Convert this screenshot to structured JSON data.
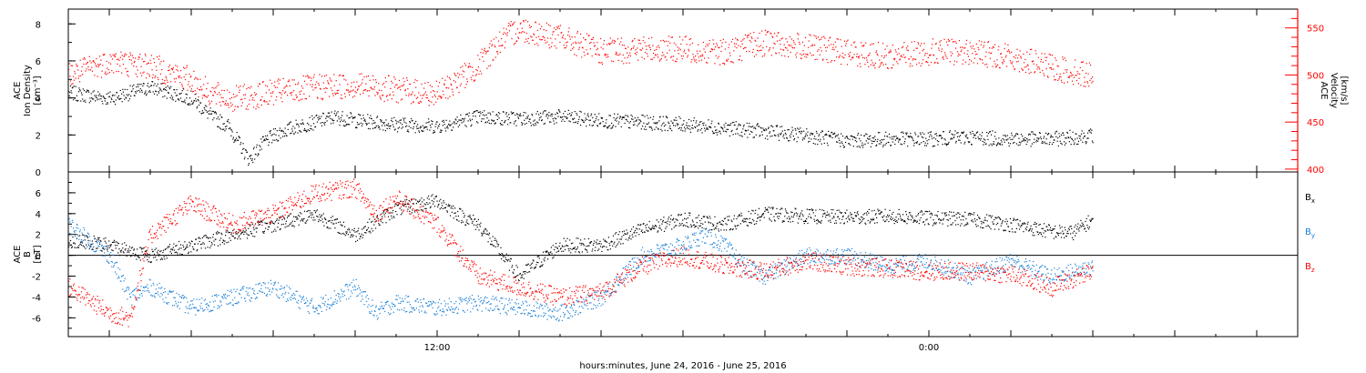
{
  "x_axis_title": "hours:minutes, June 24, 2016 - June 25, 2016",
  "chart_data": [
    {
      "type": "scatter",
      "panel": "top",
      "ylabel_left": [
        "ACE",
        "Ion Density",
        "[cm⁻³]"
      ],
      "ylabel_right": [
        "ACE",
        "Velocity",
        "[km/s]"
      ],
      "xlim": [
        3,
        33
      ],
      "ylim": [
        0,
        8.8
      ],
      "ylim_right": [
        397,
        570
      ],
      "left_ticks": [
        0,
        2,
        4,
        6,
        8
      ],
      "right_ticks": [
        400,
        450,
        500,
        550
      ],
      "x_tick_labels": [
        {
          "x": 12,
          "label": "12:00"
        },
        {
          "x": 24,
          "label": "0:00"
        }
      ],
      "colors": {
        "density": "#000000",
        "velocity": "#ff0000"
      },
      "series": [
        {
          "key": "density",
          "axis": "left",
          "scatter": 0.4,
          "x": [
            3.0,
            4.0,
            5.0,
            5.5,
            6.0,
            6.5,
            6.9,
            7.4,
            7.8,
            8.2,
            8.6,
            9.0,
            9.5,
            10.0,
            11.0,
            12.0,
            13.0,
            14.0,
            15.0,
            16.0,
            17.0,
            18.0,
            19.0,
            20.0,
            21.0,
            22.0,
            23.0,
            24.0,
            25.0,
            26.0,
            27.0,
            28.0
          ],
          "y": [
            4.3,
            4.0,
            4.6,
            4.3,
            4.0,
            3.0,
            2.5,
            0.7,
            1.7,
            2.2,
            2.5,
            2.7,
            3.0,
            2.8,
            2.6,
            2.5,
            3.0,
            2.9,
            3.0,
            2.8,
            2.7,
            2.6,
            2.4,
            2.2,
            2.0,
            1.7,
            1.8,
            1.8,
            1.9,
            1.8,
            1.8,
            2.0
          ]
        },
        {
          "key": "velocity",
          "axis": "right",
          "scatter": 14,
          "x": [
            3.0,
            4.0,
            5.0,
            6.0,
            6.5,
            7.0,
            7.5,
            8.0,
            9.0,
            10.0,
            11.0,
            12.0,
            13.0,
            13.5,
            14.0,
            15.0,
            16.0,
            17.0,
            18.0,
            19.0,
            20.0,
            21.0,
            22.0,
            23.0,
            24.0,
            25.0,
            26.0,
            27.0,
            28.0
          ],
          "y": [
            500,
            515,
            510,
            495,
            480,
            475,
            478,
            482,
            487,
            490,
            485,
            480,
            510,
            535,
            550,
            540,
            525,
            528,
            528,
            525,
            535,
            530,
            525,
            520,
            525,
            525,
            520,
            508,
            500
          ]
        }
      ]
    },
    {
      "type": "scatter",
      "panel": "bottom",
      "ylabel_left": [
        "ACE",
        "B",
        "[nT]"
      ],
      "legend": [
        {
          "text": "B",
          "sub": "x"
        },
        {
          "text": "B",
          "sub": "y"
        },
        {
          "text": "B",
          "sub": "z"
        }
      ],
      "xlim": [
        3,
        33
      ],
      "ylim": [
        -7.8,
        8.0
      ],
      "left_ticks": [
        -6,
        -4,
        -2,
        0,
        2,
        4,
        6
      ],
      "x_tick_labels": [
        {
          "x": 12,
          "label": "12:00"
        },
        {
          "x": 24,
          "label": "0:00"
        }
      ],
      "colors": {
        "bx": "#000000",
        "by": "#1c7fd6",
        "bz": "#ff0000"
      },
      "series": [
        {
          "key": "bx",
          "scatter": 0.7,
          "x": [
            3.0,
            4.0,
            5.0,
            6.0,
            7.0,
            8.0,
            9.0,
            10.0,
            11.0,
            12.0,
            12.5,
            13.0,
            14.0,
            15.0,
            16.0,
            17.0,
            18.0,
            19.0,
            20.0,
            21.0,
            22.0,
            23.0,
            24.0,
            25.0,
            26.0,
            27.0,
            27.5,
            28.0
          ],
          "y": [
            1.5,
            1.0,
            0.0,
            1.0,
            2.0,
            3.0,
            4.0,
            2.0,
            4.5,
            5.3,
            4.0,
            3.0,
            -2.0,
            1.0,
            1.0,
            2.5,
            3.5,
            3.0,
            4.0,
            3.8,
            3.7,
            3.8,
            3.6,
            3.5,
            3.0,
            2.3,
            2.2,
            3.5
          ]
        },
        {
          "key": "by",
          "scatter": 0.8,
          "x": [
            3.0,
            4.0,
            4.5,
            5.0,
            6.0,
            7.0,
            8.0,
            9.0,
            10.0,
            10.5,
            11.0,
            12.0,
            13.0,
            14.0,
            15.0,
            16.0,
            17.0,
            18.0,
            18.5,
            19.0,
            19.5,
            20.0,
            21.0,
            22.0,
            23.0,
            24.0,
            25.0,
            26.0,
            27.0,
            28.0
          ],
          "y": [
            3.0,
            0.0,
            -4.0,
            -3.0,
            -5.0,
            -4.0,
            -3.0,
            -5.0,
            -3.0,
            -5.5,
            -4.5,
            -5.0,
            -4.5,
            -5.0,
            -5.5,
            -4.0,
            0.0,
            1.0,
            2.0,
            1.0,
            -1.0,
            -2.0,
            0.0,
            0.0,
            -1.0,
            -0.5,
            -2.0,
            -0.5,
            -2.0,
            -1.0
          ]
        },
        {
          "key": "bz",
          "scatter": 0.9,
          "x": [
            3.0,
            4.0,
            4.5,
            5.0,
            6.0,
            7.0,
            8.0,
            9.0,
            10.0,
            10.5,
            11.0,
            12.0,
            13.0,
            14.0,
            15.0,
            16.0,
            17.0,
            18.0,
            19.0,
            20.0,
            21.0,
            22.0,
            23.0,
            24.0,
            25.0,
            26.0,
            27.0,
            28.0
          ],
          "y": [
            -3.0,
            -5.5,
            -6.0,
            2.0,
            5.0,
            3.0,
            4.0,
            6.0,
            6.5,
            4.0,
            5.5,
            3.0,
            -2.0,
            -3.0,
            -4.0,
            -3.5,
            -1.0,
            0.0,
            -1.0,
            -1.5,
            -0.5,
            -1.0,
            -1.2,
            -1.5,
            -1.5,
            -1.8,
            -3.0,
            -1.5
          ]
        }
      ]
    }
  ]
}
